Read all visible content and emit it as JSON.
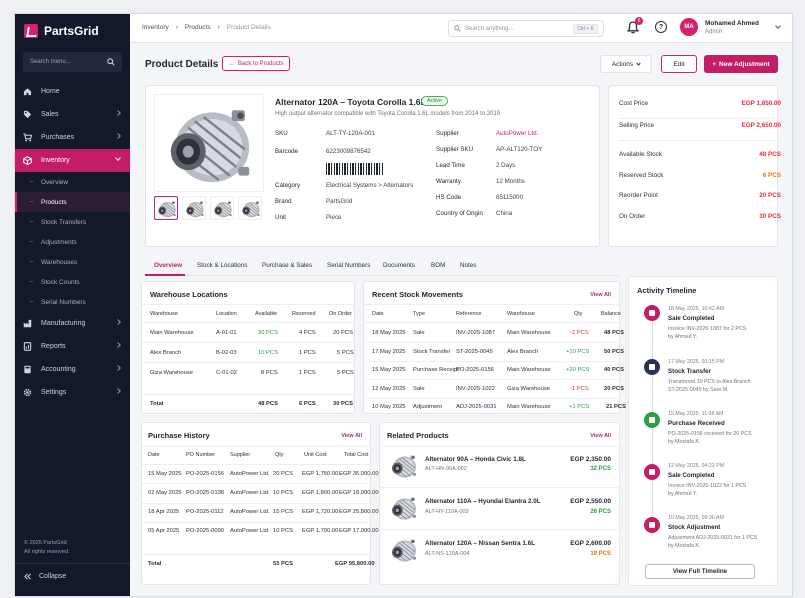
{
  "brand": {
    "name": "PartsGrid"
  },
  "sidebar": {
    "search_placeholder": "Search menu...",
    "items": [
      {
        "label": "Home"
      },
      {
        "label": "Sales"
      },
      {
        "label": "Purchases"
      },
      {
        "label": "Inventory"
      },
      {
        "label": "Manufacturing"
      },
      {
        "label": "Reports"
      },
      {
        "label": "Accounting"
      },
      {
        "label": "Settings"
      }
    ],
    "inventory_sub": [
      "Overview",
      "Products",
      "Stock Transfers",
      "Adjustments",
      "Warehouses",
      "Stock Counts",
      "Serial Numbers"
    ],
    "footer_line1": "© 2025 PartsGrid",
    "footer_line2": "All rights reserved.",
    "collapse_label": "Collapse"
  },
  "topbar": {
    "breadcrumb": [
      "Inventory",
      "Products",
      "Product Details"
    ],
    "search_placeholder": "Search anything...",
    "search_shortcut": "Ctrl + K",
    "notification_count": "6",
    "help_glyph": "?",
    "user_initials": "MA",
    "user_name": "Mohamed Ahmed",
    "user_role": "Admin"
  },
  "header": {
    "title": "Product Details",
    "back_label": "Back to Products",
    "actions_label": "Actions",
    "edit_label": "Edit",
    "new_adjustment_label": "New Adjustment"
  },
  "product": {
    "name": "Alternator 120A – Toyota Corolla 1.6L",
    "status": "Active",
    "description": "High output alternator compatible with Toyota Corolla 1.6L models from 2014 to 2019",
    "left_fields": [
      {
        "k": "SKU",
        "v": "ALT-TY-120A-001"
      },
      {
        "k": "Barcode",
        "v": "6223009876542"
      },
      {
        "k": "Category",
        "v": "Electrical Systems  >  Alternators"
      },
      {
        "k": "Brand",
        "v": "PartsGrid"
      },
      {
        "k": "Unit",
        "v": "Piece"
      }
    ],
    "right_fields": [
      {
        "k": "Supplier",
        "v": "AutoPower Ltd."
      },
      {
        "k": "Supplier SKU",
        "v": "AP-ALT120-TOY"
      },
      {
        "k": "Lead Time",
        "v": "2 Days"
      },
      {
        "k": "Warranty",
        "v": "12 Months"
      },
      {
        "k": "HS Code",
        "v": "85115000"
      },
      {
        "k": "Country of Origin",
        "v": "China"
      }
    ]
  },
  "summary": {
    "cost_price": {
      "label": "Cost Price",
      "value": "EGP 1,850.00"
    },
    "selling_price": {
      "label": "Selling Price",
      "value": "EGP 2,650.00"
    },
    "available": {
      "label": "Available Stock",
      "value": "48 PCS"
    },
    "reserved": {
      "label": "Reserved Stock",
      "value": "6 PCS"
    },
    "reorder": {
      "label": "Reorder Point",
      "value": "20 PCS"
    },
    "on_order": {
      "label": "On Order",
      "value": "30 PCS"
    }
  },
  "tabs": [
    "Overview",
    "Stock & Locations",
    "Purchase & Sales",
    "Serial Numbers",
    "Documents",
    "BOM",
    "Notes"
  ],
  "warehouse": {
    "title": "Warehouse Locations",
    "headers": [
      "Warehouse",
      "Location",
      "Available",
      "Reserved",
      "On Order"
    ],
    "rows": [
      [
        "Main Warehouse",
        "A-01-01",
        "30 PCS",
        "4 PCS",
        "20 PCS"
      ],
      [
        "Alex Branch",
        "B-02-03",
        "10 PCS",
        "1 PCS",
        "5 PCS"
      ],
      [
        "Giza Warehouse",
        "C-01-02",
        "8 PCS",
        "1 PCS",
        "5 PCS"
      ]
    ],
    "total": [
      "Total",
      "48 PCS",
      "6 PCS",
      "30 PCS"
    ]
  },
  "movements": {
    "title": "Recent Stock Movements",
    "view_all": "View All",
    "headers": [
      "Date",
      "Type",
      "Reference",
      "Warehouse",
      "Qty",
      "Balance"
    ],
    "rows": [
      [
        "18 May 2025",
        "Sale",
        "INV-2025-1087",
        "Main Warehouse",
        "-2 PCS",
        "48 PCS"
      ],
      [
        "17 May 2025",
        "Stock Transfer",
        "ST-2025-0045",
        "Alex Branch",
        "+10 PCS",
        "50 PCS"
      ],
      [
        "15 May 2025",
        "Purchase Receipt",
        "PO-2025-0156",
        "Main Warehouse",
        "+20 PCS",
        "40 PCS"
      ],
      [
        "12 May 2025",
        "Sale",
        "INV-2025-1022",
        "Giza Warehouse",
        "-1 PCS",
        "20 PCS"
      ],
      [
        "10 May 2025",
        "Adjustment",
        "ADJ-2025-0031",
        "Main Warehouse",
        "+1 PCS",
        "21 PCS"
      ]
    ]
  },
  "timeline": {
    "title": "Activity Timeline",
    "items": [
      {
        "time": "18 May 2025, 10:42 AM",
        "title": "Sale Completed",
        "d1": "Invoice INV-2025-1087 for 2 PCS",
        "d2": "by Ahmed Y.",
        "color": "#c21d66"
      },
      {
        "time": "17 May 2025, 03:15 PM",
        "title": "Stock Transfer",
        "d1": "Transferred 10 PCS to Alex Branch",
        "d2": "ST-2025-0045 by Sara M.",
        "color": "#2b3150"
      },
      {
        "time": "15 May 2025, 11:08 AM",
        "title": "Purchase Received",
        "d1": "PO-2025-0156 received for 20 PCS",
        "d2": "by Mostafa K.",
        "color": "#2f9e44"
      },
      {
        "time": "12 May 2025, 04:22 PM",
        "title": "Sale Completed",
        "d1": "Invoice INV-2025-1022 for 1 PCS",
        "d2": "by Ahmed Y.",
        "color": "#c21d66"
      },
      {
        "time": "10 May 2025, 09:30 AM",
        "title": "Stock Adjustment",
        "d1": "Adjustment ADJ-2025-0031 for 1 PCS",
        "d2": "by Mostafa K.",
        "color": "#c21d66"
      }
    ],
    "view_full": "View Full Timeline"
  },
  "purchase_history": {
    "title": "Purchase History",
    "view_all": "View All",
    "headers": [
      "Date",
      "PO Number",
      "Supplier",
      "Qty",
      "Unit Cost",
      "Total Cost"
    ],
    "rows": [
      [
        "15 May 2025",
        "PO-2025-0156",
        "AutoPower Ltd.",
        "20 PCS",
        "EGP 1,750.00",
        "EGP 35,000.00"
      ],
      [
        "02 May 2025",
        "PO-2025-0138",
        "AutoPower Ltd.",
        "10 PCS",
        "EGP 1,800.00",
        "EGP 18,000.00"
      ],
      [
        "18 Apr 2025",
        "PO-2025-0112",
        "AutoPower Ltd.",
        "15 PCS",
        "EGP 1,720.00",
        "EGP 25,800.00"
      ],
      [
        "05 Apr 2025",
        "PO-2025-0090",
        "AutoPower Ltd.",
        "10 PCS",
        "EGP 1,700.00",
        "EGP 17,000.00"
      ]
    ],
    "total": [
      "Total",
      "55 PCS",
      "EGP 95,800.00"
    ]
  },
  "related": {
    "title": "Related Products",
    "view_all": "View All",
    "items": [
      {
        "name": "Alternator 90A – Honda Civic 1.8L",
        "sku": "ALT-HN-90A-002",
        "price": "EGP 2,350.00",
        "qty": "32 PCS",
        "qcolor": "#2f9e44"
      },
      {
        "name": "Alternator 110A – Hyundai Elantra 2.0L",
        "sku": "ALT-HY-110A-003",
        "price": "EGP 2,550.00",
        "qty": "26 PCS",
        "qcolor": "#2f9e44"
      },
      {
        "name": "Alternator 120A – Nissan Sentra 1.6L",
        "sku": "ALT-NS-120A-004",
        "price": "EGP 2,600.00",
        "qty": "19 PCS",
        "qcolor": "#e07b00"
      }
    ]
  }
}
